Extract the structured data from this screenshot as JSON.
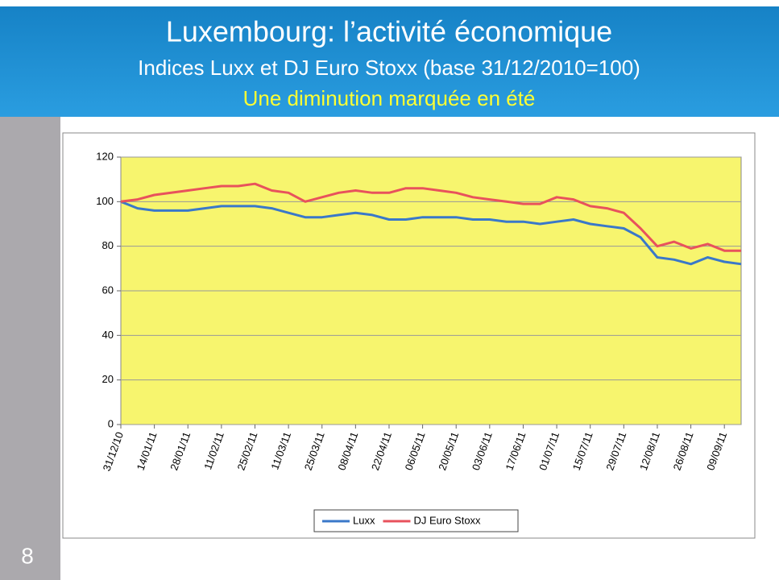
{
  "slide_number": 8,
  "chart_data": {
    "type": "line",
    "title": "Luxembourg: l’activité économique",
    "subtitle": "Indices Luxx et DJ Euro Stoxx (base 31/12/2010=100)",
    "annotation": "Une diminution marquée en été",
    "x": [
      "2010-12-31",
      "2011-01-07",
      "2011-01-14",
      "2011-01-21",
      "2011-01-28",
      "2011-02-04",
      "2011-02-11",
      "2011-02-18",
      "2011-02-25",
      "2011-03-04",
      "2011-03-11",
      "2011-03-18",
      "2011-03-25",
      "2011-04-01",
      "2011-04-08",
      "2011-04-15",
      "2011-04-22",
      "2011-04-29",
      "2011-05-06",
      "2011-05-13",
      "2011-05-20",
      "2011-05-27",
      "2011-06-03",
      "2011-06-10",
      "2011-06-17",
      "2011-06-24",
      "2011-07-01",
      "2011-07-08",
      "2011-07-15",
      "2011-07-22",
      "2011-07-29",
      "2011-08-05",
      "2011-08-12",
      "2011-08-19",
      "2011-08-26",
      "2011-09-02",
      "2011-09-09",
      "2011-09-16"
    ],
    "series": [
      {
        "name": "Luxx",
        "color": "#3a78c9",
        "values": [
          100,
          97,
          96,
          96,
          96,
          97,
          98,
          98,
          98,
          97,
          95,
          93,
          93,
          94,
          95,
          94,
          92,
          92,
          93,
          93,
          93,
          92,
          92,
          91,
          91,
          90,
          91,
          92,
          90,
          89,
          88,
          84,
          75,
          74,
          72,
          75,
          73,
          72
        ]
      },
      {
        "name": "DJ Euro Stoxx",
        "color": "#e8525c",
        "values": [
          100,
          101,
          103,
          104,
          105,
          106,
          107,
          107,
          108,
          105,
          104,
          100,
          102,
          104,
          105,
          104,
          104,
          106,
          106,
          105,
          104,
          102,
          101,
          100,
          99,
          99,
          102,
          101,
          98,
          97,
          95,
          88,
          80,
          82,
          79,
          81,
          78,
          78
        ]
      }
    ],
    "xlim": [
      "2010-12-31",
      "2011-09-16"
    ],
    "xticks": [
      {
        "value": "2010-12-31",
        "label": "31/12/10"
      },
      {
        "value": "2011-01-14",
        "label": "14/01/11"
      },
      {
        "value": "2011-01-28",
        "label": "28/01/11"
      },
      {
        "value": "2011-02-11",
        "label": "11/02/11"
      },
      {
        "value": "2011-02-25",
        "label": "25/02/11"
      },
      {
        "value": "2011-03-11",
        "label": "11/03/11"
      },
      {
        "value": "2011-03-25",
        "label": "25/03/11"
      },
      {
        "value": "2011-04-08",
        "label": "08/04/11"
      },
      {
        "value": "2011-04-22",
        "label": "22/04/11"
      },
      {
        "value": "2011-05-06",
        "label": "06/05/11"
      },
      {
        "value": "2011-05-20",
        "label": "20/05/11"
      },
      {
        "value": "2011-06-03",
        "label": "03/06/11"
      },
      {
        "value": "2011-06-17",
        "label": "17/06/11"
      },
      {
        "value": "2011-07-01",
        "label": "01/07/11"
      },
      {
        "value": "2011-07-15",
        "label": "15/07/11"
      },
      {
        "value": "2011-07-29",
        "label": "29/07/11"
      },
      {
        "value": "2011-08-12",
        "label": "12/08/11"
      },
      {
        "value": "2011-08-26",
        "label": "26/08/11"
      },
      {
        "value": "2011-09-09",
        "label": "09/09/11"
      }
    ],
    "ylim": [
      0,
      120
    ],
    "yticks": [
      0,
      20,
      40,
      60,
      80,
      100,
      120
    ],
    "grid": true,
    "plot_color": "#f7f56e",
    "legend": "bottom"
  }
}
